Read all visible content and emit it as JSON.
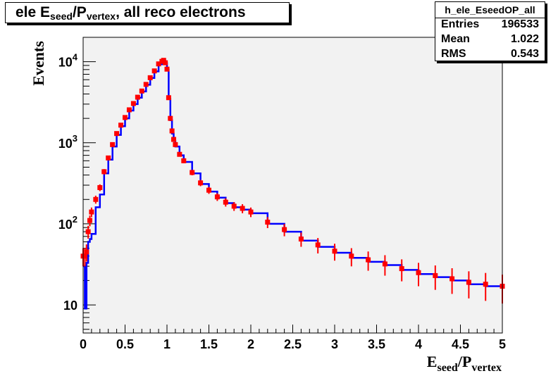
{
  "title_box": {
    "main": "ele E",
    "sub1": "seed",
    "mid": "/P",
    "sub2": "vertex",
    "tail": ", all reco electrons"
  },
  "stats": {
    "name": "h_ele_EseedOP_all",
    "rows": [
      {
        "label": "Entries",
        "value": "196533"
      },
      {
        "label": "Mean",
        "value": "1.022"
      },
      {
        "label": "RMS",
        "value": "0.543"
      }
    ]
  },
  "colors": {
    "frame_bg": "#f2f2f2",
    "line_series": "#0000ff",
    "marker_series": "#ff0000"
  },
  "chart_data": {
    "type": "line",
    "title": "ele Eseed/Pvertex, all reco electrons",
    "xlabel": "Eseed/Pvertex",
    "ylabel": "Events",
    "xlim": [
      0,
      5
    ],
    "ylim": [
      4.5,
      20000
    ],
    "yscale": "log",
    "grid": false,
    "x_ticks": [
      "0",
      "0.5",
      "1",
      "1.5",
      "2",
      "2.5",
      "3",
      "3.5",
      "4",
      "4.5",
      "5"
    ],
    "y_ticks": [
      {
        "value": 10,
        "base": "10",
        "exp": ""
      },
      {
        "value": 100,
        "base": "10",
        "exp": "2"
      },
      {
        "value": 1000,
        "base": "10",
        "exp": "3"
      },
      {
        "value": 10000,
        "base": "10",
        "exp": "4"
      }
    ],
    "x": [
      0,
      0.02,
      0.04,
      0.06,
      0.08,
      0.1,
      0.15,
      0.2,
      0.25,
      0.3,
      0.35,
      0.4,
      0.45,
      0.5,
      0.55,
      0.6,
      0.65,
      0.7,
      0.75,
      0.8,
      0.85,
      0.9,
      0.94,
      0.96,
      0.98,
      1.0,
      1.02,
      1.04,
      1.06,
      1.08,
      1.1,
      1.15,
      1.2,
      1.3,
      1.4,
      1.5,
      1.6,
      1.7,
      1.8,
      1.9,
      2.0,
      2.2,
      2.4,
      2.6,
      2.8,
      3.0,
      3.2,
      3.4,
      3.6,
      3.8,
      4.0,
      4.2,
      4.4,
      4.6,
      4.8,
      5.0
    ],
    "series": [
      {
        "values": [
          30,
          9,
          33,
          60,
          65,
          75,
          160,
          230,
          420,
          620,
          900,
          1250,
          1600,
          2000,
          2500,
          3000,
          3600,
          4300,
          5200,
          6300,
          7600,
          9300,
          10000,
          10300,
          9600,
          8000,
          3500,
          1900,
          1300,
          1050,
          900,
          700,
          580,
          420,
          310,
          250,
          210,
          180,
          160,
          150,
          135,
          100,
          80,
          62,
          52,
          44,
          38,
          34,
          31,
          27,
          24,
          22,
          20,
          18,
          17,
          16
        ],
        "style": "step"
      },
      {
        "values": [
          40,
          40,
          45,
          80,
          110,
          140,
          200,
          280,
          440,
          650,
          950,
          1300,
          1650,
          2050,
          2550,
          3050,
          3650,
          4350,
          5250,
          6350,
          7700,
          9400,
          10100,
          10400,
          9700,
          8100,
          3600,
          2000,
          1400,
          1100,
          950,
          720,
          600,
          430,
          320,
          260,
          215,
          185,
          165,
          155,
          140,
          105,
          85,
          65,
          55,
          46,
          40,
          36,
          32,
          28,
          25,
          23,
          21,
          19,
          18,
          17
        ],
        "style": "markers"
      }
    ]
  }
}
